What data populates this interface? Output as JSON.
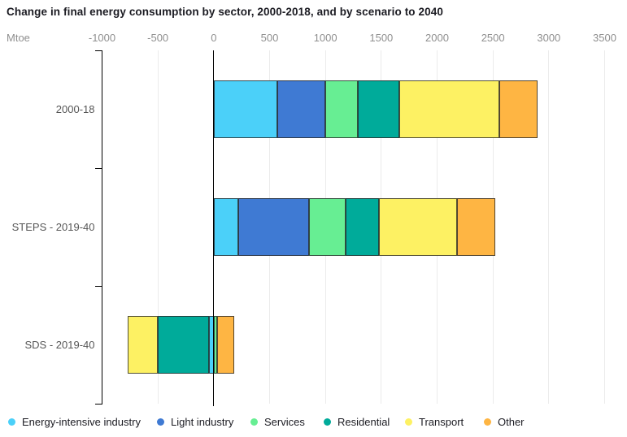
{
  "title": "Change in final energy consumption by sector, 2000-2018, and by scenario to 2040",
  "unit_label": "Mtoe",
  "chart_data": {
    "type": "bar",
    "orientation": "horizontal",
    "stacked": true,
    "title": "Change in final energy consumption by sector, 2000-2018, and by scenario to 2040",
    "xlabel": "Mtoe",
    "ylabel": "",
    "xlim": [
      -1000,
      3500
    ],
    "x_ticks": [
      -1000,
      -500,
      0,
      500,
      1000,
      1500,
      2000,
      2500,
      3000,
      3500
    ],
    "grid": "vertical-light",
    "legend_position": "bottom",
    "categories": [
      "2000-18",
      "STEPS - 2019-40",
      "SDS - 2019-40"
    ],
    "series": [
      {
        "name": "Energy-intensive industry",
        "color": "#4bd0f9",
        "values": [
          570,
          220,
          -40
        ]
      },
      {
        "name": "Light industry",
        "color": "#3f7ad3",
        "values": [
          430,
          630,
          0
        ]
      },
      {
        "name": "Services",
        "color": "#67ee93",
        "values": [
          290,
          330,
          30
        ]
      },
      {
        "name": "Residential",
        "color": "#00ab9a",
        "values": [
          370,
          300,
          -460
        ]
      },
      {
        "name": "Transport",
        "color": "#fdf163",
        "values": [
          900,
          700,
          -270
        ]
      },
      {
        "name": "Other",
        "color": "#feb543",
        "values": [
          340,
          340,
          150
        ]
      }
    ],
    "totals_by_category": [
      2900,
      2520,
      -590
    ],
    "colors": {
      "axis": "#000000",
      "grid": "#ebebeb",
      "tick_text": "#8f8f8f",
      "category_text": "#565656",
      "title_text": "#1b1b22"
    },
    "legend_x_positions": [
      10,
      193,
      308,
      398,
      498,
      595
    ]
  }
}
